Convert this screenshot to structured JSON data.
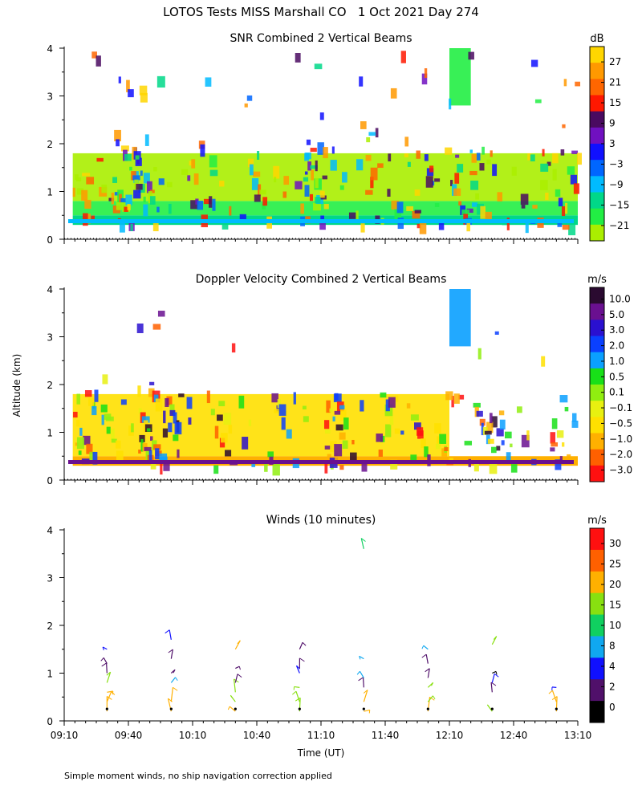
{
  "page_title": "LOTOS Tests MISS Marshall CO   1 Oct 2021 Day 274",
  "footer_note": "Simple moment winds, no ship navigation correction applied",
  "shared_axes": {
    "y_label": "Altitude (km)",
    "x_label": "Time (UT)",
    "y_ticks": [
      "0",
      "1",
      "2",
      "3",
      "4"
    ],
    "x_ticks": [
      "09:10",
      "09:40",
      "10:10",
      "10:40",
      "11:10",
      "11:40",
      "12:10",
      "12:40",
      "13:10"
    ],
    "x_tick_minutes": [
      0,
      30,
      60,
      90,
      120,
      150,
      180,
      210,
      240
    ],
    "ylim": [
      0,
      4
    ],
    "xlim_minutes": [
      0,
      240
    ]
  },
  "chart_data": [
    {
      "type": "heatmap",
      "title": "SNR Combined 2 Vertical Beams",
      "colorbar_unit": "dB",
      "colorbar_labels": [
        "27",
        "21",
        "15",
        "9",
        "3",
        "−3",
        "−9",
        "−15",
        "−21"
      ],
      "colorbar_colors": [
        "#ffd600",
        "#ff9900",
        "#ff6600",
        "#ff1800",
        "#4a0a60",
        "#7010c0",
        "#1010ff",
        "#0066ff",
        "#00bbff",
        "#00d888",
        "#22ee44",
        "#aaee00"
      ],
      "regions": [
        {
          "t0": 4,
          "t1": 240,
          "z0": 0.3,
          "z1": 0.5,
          "level": "-12"
        },
        {
          "t0": 4,
          "t1": 240,
          "z0": 0.5,
          "z1": 0.8,
          "level": "-15"
        },
        {
          "t0": 4,
          "t1": 240,
          "z0": 0.8,
          "z1": 1.8,
          "level": "-21"
        },
        {
          "t0": 180,
          "t1": 190,
          "z0": 2.8,
          "z1": 4.0,
          "level": "-15"
        }
      ]
    },
    {
      "type": "heatmap",
      "title": "Doppler Velocity Combined 2 Vertical Beams",
      "colorbar_unit": "m/s",
      "colorbar_labels": [
        "10.0",
        "5.0",
        "3.0",
        "2.0",
        "1.0",
        "0.5",
        "0.1",
        "−0.1",
        "−0.5",
        "−1.0",
        "−2.0",
        "−3.0"
      ],
      "colorbar_colors": [
        "#2a0a30",
        "#6a1090",
        "#2a10d0",
        "#0a40ff",
        "#0aa0ff",
        "#18e018",
        "#90ee10",
        "#e8f010",
        "#ffe000",
        "#ffb000",
        "#ff6000",
        "#ff1010"
      ],
      "regions": [
        {
          "t0": 4,
          "t1": 240,
          "z0": 0.3,
          "z1": 0.5,
          "level": "-1.0"
        },
        {
          "t0": 4,
          "t1": 180,
          "z0": 0.5,
          "z1": 1.8,
          "level": "-0.5"
        },
        {
          "t0": 180,
          "t1": 190,
          "z0": 2.8,
          "z1": 4.0,
          "level": "1.0"
        }
      ]
    },
    {
      "type": "barbs",
      "title": "Winds (10 minutes)",
      "colorbar_unit": "m/s",
      "colorbar_labels": [
        "30",
        "25",
        "20",
        "15",
        "10",
        "8",
        "4",
        "2",
        "0"
      ],
      "colorbar_colors": [
        "#ff1010",
        "#ff6000",
        "#ffb000",
        "#88e010",
        "#10d060",
        "#10a8f0",
        "#1010ff",
        "#50106a",
        "#000000"
      ],
      "profile_times": [
        "09:30",
        "10:00",
        "10:30",
        "11:00",
        "11:30",
        "12:00",
        "12:30",
        "13:00"
      ],
      "profile_minutes": [
        20,
        50,
        80,
        110,
        140,
        170,
        200,
        230
      ],
      "barbs": [
        {
          "t": 20,
          "z": 0.2,
          "speed": 20
        },
        {
          "t": 20,
          "z": 0.4,
          "speed": 20
        },
        {
          "t": 20,
          "z": 0.6,
          "speed": 20
        },
        {
          "t": 20,
          "z": 0.8,
          "speed": 15
        },
        {
          "t": 20,
          "z": 1.0,
          "speed": 2
        },
        {
          "t": 20,
          "z": 1.2,
          "speed": 2
        },
        {
          "t": 20,
          "z": 1.5,
          "speed": 4
        },
        {
          "t": 50,
          "z": 0.2,
          "speed": 20
        },
        {
          "t": 50,
          "z": 0.4,
          "speed": 20
        },
        {
          "t": 50,
          "z": 0.8,
          "speed": 8
        },
        {
          "t": 50,
          "z": 1.0,
          "speed": 2
        },
        {
          "t": 50,
          "z": 1.3,
          "speed": 2
        },
        {
          "t": 50,
          "z": 1.7,
          "speed": 4
        },
        {
          "t": 80,
          "z": 0.2,
          "speed": 20
        },
        {
          "t": 80,
          "z": 0.4,
          "speed": 15
        },
        {
          "t": 80,
          "z": 0.6,
          "speed": 15
        },
        {
          "t": 80,
          "z": 0.8,
          "speed": 2
        },
        {
          "t": 80,
          "z": 1.1,
          "speed": 2
        },
        {
          "t": 80,
          "z": 1.5,
          "speed": 20
        },
        {
          "t": 110,
          "z": 0.2,
          "speed": 15
        },
        {
          "t": 110,
          "z": 0.4,
          "speed": 15
        },
        {
          "t": 110,
          "z": 0.7,
          "speed": 15
        },
        {
          "t": 110,
          "z": 1.0,
          "speed": 4
        },
        {
          "t": 110,
          "z": 1.1,
          "speed": 2
        },
        {
          "t": 110,
          "z": 1.5,
          "speed": 2
        },
        {
          "t": 140,
          "z": 0.2,
          "speed": 20
        },
        {
          "t": 140,
          "z": 0.4,
          "speed": 20
        },
        {
          "t": 140,
          "z": 0.7,
          "speed": 2
        },
        {
          "t": 140,
          "z": 0.9,
          "speed": 8
        },
        {
          "t": 140,
          "z": 1.3,
          "speed": 8
        },
        {
          "t": 140,
          "z": 3.6,
          "speed": 10
        },
        {
          "t": 170,
          "z": 0.2,
          "speed": 20
        },
        {
          "t": 170,
          "z": 0.4,
          "speed": 15
        },
        {
          "t": 170,
          "z": 0.7,
          "speed": 15
        },
        {
          "t": 170,
          "z": 0.9,
          "speed": 2
        },
        {
          "t": 170,
          "z": 1.2,
          "speed": 2
        },
        {
          "t": 170,
          "z": 1.5,
          "speed": 8
        },
        {
          "t": 200,
          "z": 0.2,
          "speed": 15
        },
        {
          "t": 200,
          "z": 0.6,
          "speed": 2
        },
        {
          "t": 200,
          "z": 0.8,
          "speed": 4
        },
        {
          "t": 200,
          "z": 1.0,
          "speed": 0
        },
        {
          "t": 200,
          "z": 1.6,
          "speed": 15
        },
        {
          "t": 230,
          "z": 0.2,
          "speed": 20
        },
        {
          "t": 230,
          "z": 0.4,
          "speed": 20
        },
        {
          "t": 230,
          "z": 0.7,
          "speed": 4
        }
      ]
    }
  ]
}
